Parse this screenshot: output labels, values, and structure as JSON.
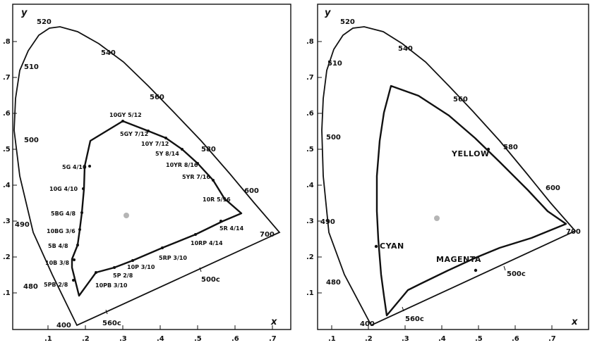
{
  "panels": [
    {
      "id": "left",
      "y_axis_label": "y",
      "x_axis_label": "x",
      "x_ticks": [
        ".1",
        ".2",
        ".3",
        ".4",
        ".5",
        ".6",
        ".7"
      ],
      "y_ticks": [
        ".1",
        ".2",
        ".3",
        ".4",
        ".5",
        ".6",
        ".7",
        ".8"
      ],
      "wavelength_labels": [
        "520",
        "540",
        "510",
        "560",
        "500",
        "580",
        "600",
        "490",
        "700",
        "480",
        "500c",
        "560c",
        "400"
      ],
      "white_point": "gray-dot",
      "gamut_points": [
        {
          "label": "10GY 5/12"
        },
        {
          "label": "5GY 7/12"
        },
        {
          "label": "10Y 7/12"
        },
        {
          "label": "5Y 8/14"
        },
        {
          "label": "10YR 8/16"
        },
        {
          "label": "5YR 7/16"
        },
        {
          "label": "10R 5/16"
        },
        {
          "label": "5R 4/14"
        },
        {
          "label": "10RP 4/14"
        },
        {
          "label": "5RP 3/10"
        },
        {
          "label": "10P 3/10"
        },
        {
          "label": "5P 2/8"
        },
        {
          "label": "10PB 3/10"
        },
        {
          "label": "5PB 2/8"
        },
        {
          "label": "10B 3/8"
        },
        {
          "label": "5B 4/8"
        },
        {
          "label": "10BG 3/6"
        },
        {
          "label": "5BG 4/8"
        },
        {
          "label": "10G 4/10"
        },
        {
          "label": "5G 4/10"
        }
      ]
    },
    {
      "id": "right",
      "y_axis_label": "y",
      "x_axis_label": "x",
      "x_ticks": [
        ".1",
        ".2",
        ".3",
        ".4",
        ".5",
        ".6",
        ".7"
      ],
      "y_ticks": [
        ".1",
        ".2",
        ".3",
        ".4",
        ".5",
        ".6",
        ".7",
        ".8"
      ],
      "wavelength_labels": [
        "520",
        "540",
        "510",
        "560",
        "500",
        "580",
        "600",
        "490",
        "700",
        "480",
        "500c",
        "560c",
        "400"
      ],
      "white_point": "gray-dot",
      "primaries": [
        {
          "label": "YELLOW"
        },
        {
          "label": "CYAN"
        },
        {
          "label": "MAGENTA"
        }
      ]
    }
  ]
}
